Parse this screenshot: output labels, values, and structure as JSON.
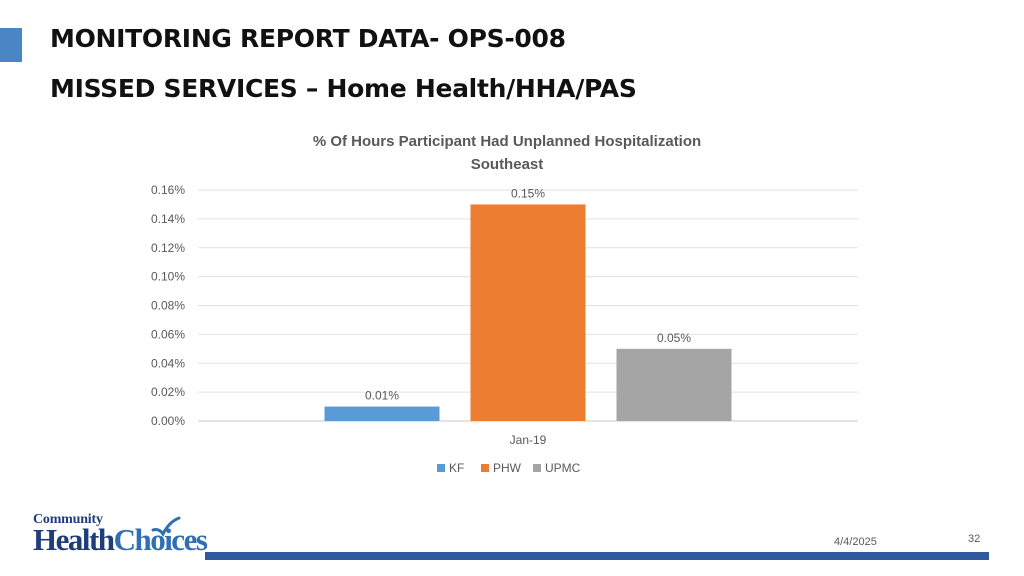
{
  "slide": {
    "title_line1": "MONITORING REPORT DATA- OPS-008",
    "title_line2": "MISSED SERVICES – Home Health/HHA/PAS",
    "date": "4/4/2025",
    "page_number": "32",
    "accent_color": "#4a86c5",
    "footer_bar_color": "#2f5b9e"
  },
  "logo": {
    "top_word": "Community",
    "bottom_word_1": "Health",
    "bottom_word_2": "Choices"
  },
  "chart_data": {
    "type": "bar",
    "title": "% Of Hours Participant Had Unplanned Hospitalization",
    "subtitle": "Southeast",
    "categories": [
      "Jan-19"
    ],
    "series": [
      {
        "name": "KF",
        "values": [
          0.01
        ],
        "data_labels": [
          "0.01%"
        ],
        "color": "#5b9bd5"
      },
      {
        "name": "PHW",
        "values": [
          0.15
        ],
        "data_labels": [
          "0.15%"
        ],
        "color": "#ed7d31"
      },
      {
        "name": "UPMC",
        "values": [
          0.05
        ],
        "data_labels": [
          "0.05%"
        ],
        "color": "#a5a5a5"
      }
    ],
    "y_ticks": [
      "0.00%",
      "0.02%",
      "0.04%",
      "0.06%",
      "0.08%",
      "0.10%",
      "0.12%",
      "0.14%",
      "0.16%"
    ],
    "ylim": [
      0,
      0.16
    ],
    "y_unit": "%",
    "xlabel": "",
    "ylabel": "",
    "grid": true,
    "legend_position": "bottom"
  }
}
